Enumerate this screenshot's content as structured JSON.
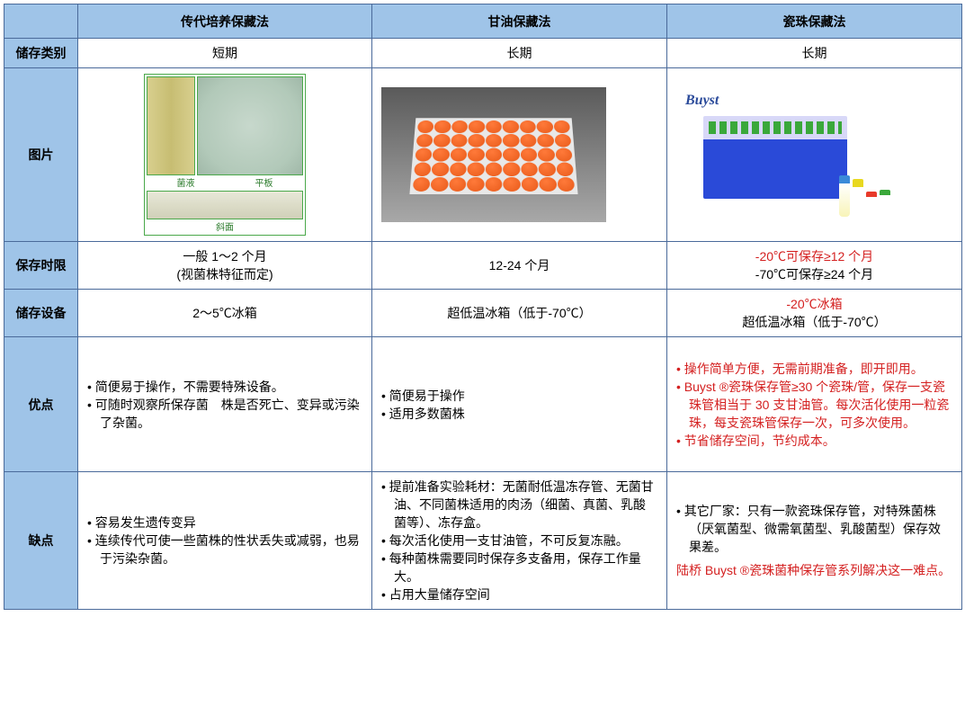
{
  "headers": {
    "col1": "传代培养保藏法",
    "col2": "甘油保藏法",
    "col3": "瓷珠保藏法"
  },
  "rows": {
    "storage_type": {
      "label": "储存类别",
      "c1": "短期",
      "c2": "长期",
      "c3": "长期"
    },
    "image": {
      "label": "图片",
      "m1_label_a": "菌液",
      "m1_label_b": "平板",
      "m1_label_c": "斜面",
      "m3_logo": "Buyst"
    },
    "duration": {
      "label": "保存时限",
      "c1_line1": "一般 1～2 个月",
      "c1_line2": "(视菌株特征而定)",
      "c2": "12-24 个月",
      "c3_line1": "-20℃可保存≥12 个月",
      "c3_line2": "-70℃可保存≥24 个月"
    },
    "equipment": {
      "label": "储存设备",
      "c1": "2～5℃冰箱",
      "c2": "超低温冰箱（低于-70℃）",
      "c3_line1": "-20℃冰箱",
      "c3_line2": "超低温冰箱（低于-70℃）"
    },
    "pros": {
      "label": "优点",
      "c1_b1": "• 简便易于操作，不需要特殊设备。",
      "c1_b2": "• 可随时观察所保存菌　株是否死亡、变异或污染了杂菌。",
      "c2_b1": "• 简便易于操作",
      "c2_b2": "• 适用多数菌株",
      "c3_b1": "• 操作简单方便，无需前期准备，即开即用。",
      "c3_b2": "• Buyst ®瓷珠保存管≥30 个瓷珠/管，保存一支瓷珠管相当于 30 支甘油管。每次活化使用一粒瓷珠，每支瓷珠管保存一次，可多次使用。",
      "c3_b3": "• 节省储存空间，节约成本。"
    },
    "cons": {
      "label": "缺点",
      "c1_b1": "• 容易发生遗传变异",
      "c1_b2": "• 连续传代可使一些菌株的性状丢失或减弱，也易于污染杂菌。",
      "c2_b1": "• 提前准备实验耗材：无菌耐低温冻存管、无菌甘油、不同菌株适用的肉汤（细菌、真菌、乳酸菌等）、冻存盒。",
      "c2_b2": "• 每次活化使用一支甘油管，不可反复冻融。",
      "c2_b3": "• 每种菌株需要同时保存多支备用，保存工作量大。",
      "c2_b4": "• 占用大量储存空间",
      "c3_p1": "• 其它厂家：只有一款瓷珠保存管，对特殊菌株（厌氧菌型、微需氧菌型、乳酸菌型）保存效果差。",
      "c3_p2": "陆桥 Buyst ®瓷珠菌种保存管系列解决这一难点。"
    }
  },
  "style": {
    "header_bg": "#9fc4e8",
    "border_color": "#4a6a9a",
    "red_text": "#d42020",
    "body_font_size": 14
  }
}
